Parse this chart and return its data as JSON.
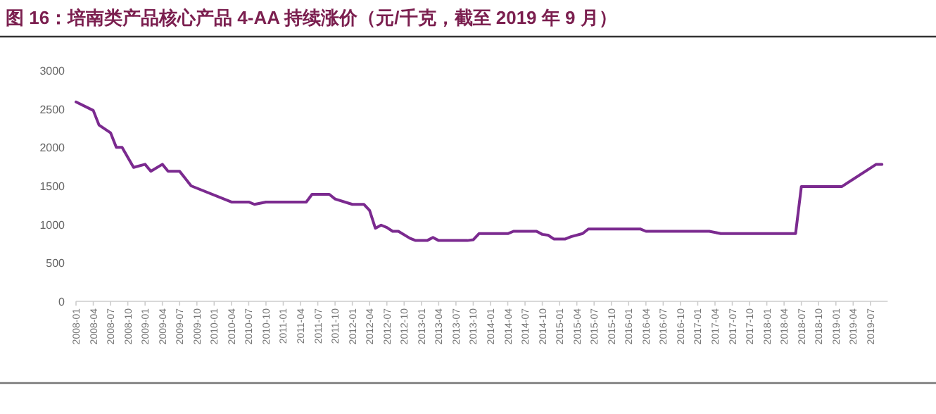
{
  "chart_data": {
    "type": "line",
    "title": "图 16：培南类产品核心产品 4-AA 持续涨价（元/千克，截至 2019 年 9 月）",
    "x": [
      "2008-01",
      "2008-04",
      "2008-05",
      "2008-07",
      "2008-08",
      "2008-09",
      "2008-11",
      "2009-01",
      "2009-02",
      "2009-04",
      "2009-05",
      "2009-07",
      "2009-09",
      "2010-04",
      "2010-07",
      "2010-08",
      "2010-10",
      "2011-05",
      "2011-06",
      "2011-09",
      "2011-10",
      "2012-01",
      "2012-03",
      "2012-04",
      "2012-05",
      "2012-06",
      "2012-07",
      "2012-08",
      "2012-09",
      "2012-11",
      "2012-12",
      "2013-02",
      "2013-03",
      "2013-04",
      "2013-09",
      "2013-10",
      "2013-11",
      "2014-04",
      "2014-05",
      "2014-09",
      "2014-10",
      "2014-11",
      "2014-12",
      "2015-02",
      "2015-03",
      "2015-05",
      "2015-06",
      "2016-03",
      "2016-04",
      "2017-03",
      "2017-05",
      "2018-06",
      "2018-07",
      "2019-02",
      "2019-08",
      "2019-09"
    ],
    "series": [
      {
        "color": "#7b2a8f",
        "values": [
          2590,
          2480,
          2290,
          2190,
          2000,
          2000,
          1740,
          1780,
          1690,
          1780,
          1690,
          1690,
          1500,
          1290,
          1290,
          1260,
          1290,
          1290,
          1390,
          1390,
          1330,
          1260,
          1260,
          1180,
          950,
          990,
          960,
          910,
          910,
          820,
          790,
          790,
          830,
          790,
          790,
          800,
          880,
          880,
          910,
          910,
          870,
          860,
          810,
          810,
          840,
          880,
          940,
          940,
          910,
          910,
          880,
          880,
          1490,
          1490,
          1780,
          1780
        ]
      }
    ],
    "xlim": [
      "2008-01",
      "2019-10"
    ],
    "xticks": [
      "2008-01",
      "2008-04",
      "2008-07",
      "2008-10",
      "2009-01",
      "2009-04",
      "2009-07",
      "2009-10",
      "2010-01",
      "2010-04",
      "2010-07",
      "2010-10",
      "2011-01",
      "2011-04",
      "2011-07",
      "2011-10",
      "2012-01",
      "2012-04",
      "2012-07",
      "2012-10",
      "2013-01",
      "2013-04",
      "2013-07",
      "2013-10",
      "2014-01",
      "2014-04",
      "2014-07",
      "2014-10",
      "2015-01",
      "2015-04",
      "2015-07",
      "2015-10",
      "2016-01",
      "2016-04",
      "2016-07",
      "2016-10",
      "2017-01",
      "2017-04",
      "2017-07",
      "2017-10",
      "2018-01",
      "2018-04",
      "2018-07",
      "2018-10",
      "2019-01",
      "2019-04",
      "2019-07"
    ],
    "ylim": [
      0,
      3000
    ],
    "yticks": [
      0,
      500,
      1000,
      1500,
      2000,
      2500,
      3000
    ],
    "grid": false,
    "marker": "none",
    "line_style": "solid"
  }
}
